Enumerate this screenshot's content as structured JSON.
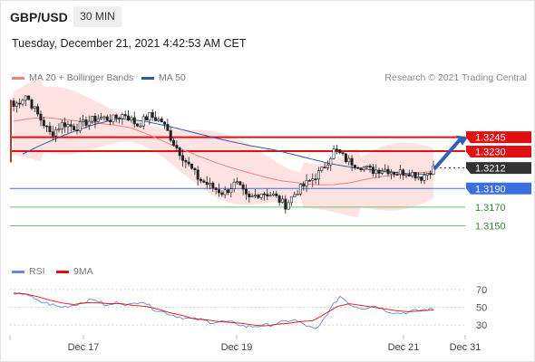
{
  "header": {
    "symbol": "GBP/USD",
    "timeframe": "30 MIN",
    "datetime": "Tuesday, December 21, 2021 4:42:53 AM CET"
  },
  "legend": {
    "ma20": "MA 20 + Bollinger Bands",
    "ma50": "MA 50",
    "research": "Research © 2021 Trading Central",
    "rsi": "RSI",
    "rsi_ma": "9MA"
  },
  "colors": {
    "ma20": "#f08080",
    "ma50": "#2f5aa0",
    "bollinger_fill": "#ffe3e3",
    "resistance": "#e01010",
    "support": "#3a6fe0",
    "target": "#6cbf6c",
    "current_price": "#333333",
    "rsi": "#6688dd",
    "rsi_ma": "#e01010",
    "arrow": "#3060b0"
  },
  "chart_data": [
    {
      "type": "candlestick",
      "title": "GBP/USD",
      "timeframe": "30 MIN",
      "x_tick_labels": [
        "Dec 17",
        "Dec 19",
        "Dec 21",
        "Dec 31"
      ],
      "ylim": [
        1.3135,
        1.3295
      ],
      "current_price": 1.3212,
      "levels": [
        {
          "label": "1.3245",
          "value": 1.3245,
          "kind": "resistance"
        },
        {
          "label": "1.3230",
          "value": 1.323,
          "kind": "resistance"
        },
        {
          "label": "1.3212",
          "value": 1.3212,
          "kind": "current"
        },
        {
          "label": "1.3190",
          "value": 1.319,
          "kind": "support"
        },
        {
          "label": "1.3170",
          "value": 1.317,
          "kind": "target"
        },
        {
          "label": "1.3150",
          "value": 1.315,
          "kind": "target"
        }
      ],
      "close_series": [
        1.3278,
        1.329,
        1.3268,
        1.3248,
        1.326,
        1.3255,
        1.3262,
        1.3266,
        1.3264,
        1.327,
        1.3258,
        1.3268,
        1.3262,
        1.3238,
        1.3218,
        1.32,
        1.3192,
        1.3185,
        1.3196,
        1.3178,
        1.3186,
        1.3183,
        1.3172,
        1.3188,
        1.3198,
        1.321,
        1.3232,
        1.322,
        1.3215,
        1.3209,
        1.3211,
        1.3207,
        1.3208,
        1.3202,
        1.3212
      ],
      "ma20_series": [
        1.3262,
        1.3265,
        1.3266,
        1.3264,
        1.3262,
        1.326,
        1.3258,
        1.3255,
        1.3248,
        1.324,
        1.3232,
        1.3225,
        1.3218,
        1.3212,
        1.3207,
        1.3202,
        1.3198,
        1.3196,
        1.3194,
        1.3194,
        1.3196,
        1.32,
        1.3203,
        1.3205,
        1.3207,
        1.3208
      ],
      "ma50_series": [
        1.3222,
        1.3236,
        1.3248,
        1.3258,
        1.3265,
        1.3262,
        1.3256,
        1.3249,
        1.3242,
        1.3236,
        1.3231,
        1.3224,
        1.3217,
        1.3212,
        1.3209,
        1.3206,
        1.3205
      ]
    },
    {
      "type": "line",
      "title": "RSI",
      "series": [
        {
          "name": "RSI"
        },
        {
          "name": "9MA"
        }
      ],
      "ylim": [
        22,
        78
      ],
      "y_ticks": [
        "70",
        "50",
        "30"
      ],
      "rsi_values": [
        63,
        66,
        57,
        54,
        50,
        52,
        56,
        59,
        51,
        56,
        52,
        58,
        48,
        44,
        40,
        37,
        36,
        33,
        34,
        32,
        28,
        29,
        30,
        33,
        36,
        30,
        24,
        45,
        63,
        52,
        49,
        52,
        46,
        43,
        45,
        47,
        48
      ],
      "ma9_values": [
        66,
        65,
        62,
        58,
        55,
        53,
        55,
        55,
        54,
        54,
        52,
        51,
        48,
        44,
        41,
        37,
        36,
        34,
        33,
        32,
        30,
        29,
        31,
        32,
        34,
        35,
        43,
        51,
        54,
        52,
        50,
        48,
        46,
        45,
        46,
        47
      ]
    }
  ]
}
